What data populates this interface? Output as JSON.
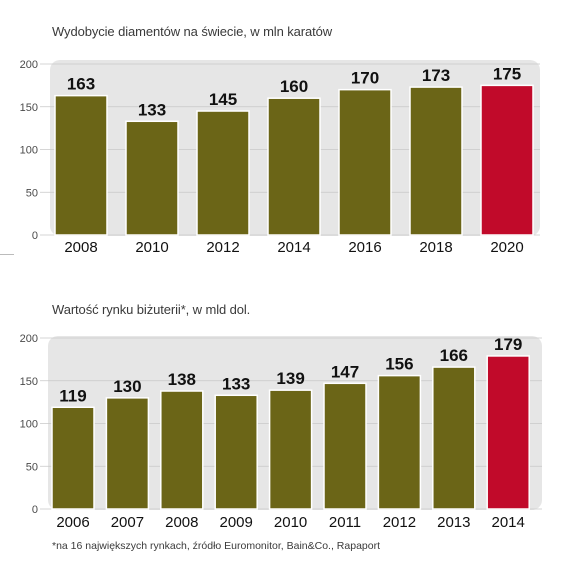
{
  "chart_data": [
    {
      "type": "bar",
      "title": "Wydobycie diamentów na świecie, w mln karatów",
      "categories": [
        "2008",
        "2010",
        "2012",
        "2014",
        "2016",
        "2018",
        "2020"
      ],
      "values": [
        163,
        133,
        145,
        160,
        170,
        173,
        175
      ],
      "data_labels": [
        "163",
        "133",
        "145",
        "160",
        "170",
        "173",
        "175"
      ],
      "yticks": [
        "0",
        "50",
        "100",
        "150",
        "200"
      ],
      "ylim": [
        0,
        200
      ],
      "grid": true,
      "colors": {
        "bar": "#6b6517",
        "highlight": "#c10a2a",
        "background": "#e6e6e6"
      },
      "highlight_index": 6
    },
    {
      "type": "bar",
      "title": "Wartość rynku biżuterii*, w mld dol.",
      "categories": [
        "2006",
        "2007",
        "2008",
        "2009",
        "2010",
        "2011",
        "2012",
        "2013",
        "2014"
      ],
      "values": [
        119,
        130,
        138,
        133,
        139,
        147,
        156,
        166,
        179
      ],
      "data_labels": [
        "119",
        "130",
        "138",
        "133",
        "139",
        "147",
        "156",
        "166",
        "179"
      ],
      "yticks": [
        "0",
        "50",
        "100",
        "150",
        "200"
      ],
      "ylim": [
        0,
        200
      ],
      "grid": true,
      "colors": {
        "bar": "#6b6517",
        "highlight": "#c10a2a",
        "background": "#e6e6e6"
      },
      "highlight_index": 8,
      "footnote": "*na 16 największych rynkach, źródło Euromonitor, Bain&Co., Rapaport"
    }
  ]
}
